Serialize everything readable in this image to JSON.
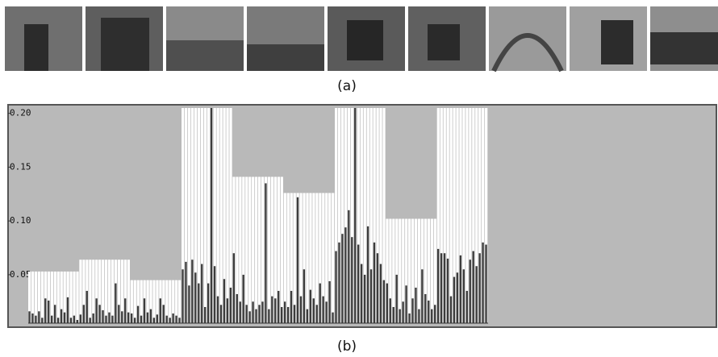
{
  "chart_data": {
    "type": "bar",
    "caption_top": "(a)",
    "caption_bottom": "(b)",
    "ylim": [
      0.005,
      0.205
    ],
    "yticks": [
      0.05,
      {
        "value": 0.1,
        "label": "0.10"
      },
      0.15,
      {
        "value": 0.2,
        "label": "0.20"
      }
    ],
    "threshold_color": "#ffffff",
    "color": "#3c3c3c",
    "background": "#b9b9b9",
    "segments": [
      {
        "threshold": 0.053,
        "values": [
          0.016,
          0.014,
          0.012,
          0.016,
          0.01,
          0.028,
          0.026,
          0.012,
          0.022,
          0.01,
          0.018,
          0.015,
          0.029,
          0.01,
          0.012,
          0.008
        ]
      },
      {
        "threshold": 0.064,
        "values": [
          0.013,
          0.022,
          0.035,
          0.01,
          0.014,
          0.028,
          0.022,
          0.017,
          0.012,
          0.015,
          0.012,
          0.042,
          0.022,
          0.016,
          0.028,
          0.015
        ]
      },
      {
        "threshold": 0.045,
        "values": [
          0.014,
          0.01,
          0.021,
          0.012,
          0.028,
          0.015,
          0.018,
          0.01,
          0.013,
          0.028,
          0.022,
          0.012,
          0.01,
          0.014,
          0.012,
          0.01
        ]
      },
      {
        "threshold": 0.205,
        "values": [
          0.055,
          0.062,
          0.04,
          0.064,
          0.052,
          0.042,
          0.06,
          0.02,
          0.042,
          0.205,
          0.058,
          0.03,
          0.022,
          0.046,
          0.028,
          0.038
        ]
      },
      {
        "threshold": 0.141,
        "values": [
          0.07,
          0.032,
          0.025,
          0.05,
          0.022,
          0.016,
          0.025,
          0.018,
          0.022,
          0.025,
          0.135,
          0.018,
          0.03,
          0.028,
          0.035,
          0.02
        ]
      },
      {
        "threshold": 0.126,
        "values": [
          0.025,
          0.02,
          0.035,
          0.022,
          0.122,
          0.03,
          0.055,
          0.018,
          0.036,
          0.028,
          0.022,
          0.042,
          0.03,
          0.025,
          0.044,
          0.015
        ]
      },
      {
        "threshold": 0.205,
        "values": [
          0.072,
          0.08,
          0.088,
          0.094,
          0.11,
          0.085,
          0.205,
          0.078,
          0.06,
          0.05,
          0.095,
          0.055,
          0.08,
          0.07,
          0.06,
          0.045
        ]
      },
      {
        "threshold": 0.102,
        "values": [
          0.042,
          0.028,
          0.02,
          0.05,
          0.018,
          0.025,
          0.04,
          0.014,
          0.028,
          0.038,
          0.018,
          0.055,
          0.032,
          0.026,
          0.018,
          0.022
        ]
      },
      {
        "threshold": 0.205,
        "values": [
          0.074,
          0.07,
          0.07,
          0.065,
          0.03,
          0.048,
          0.052,
          0.068,
          0.055,
          0.035,
          0.064,
          0.072,
          0.058,
          0.07,
          0.08,
          0.078
        ]
      }
    ]
  }
}
